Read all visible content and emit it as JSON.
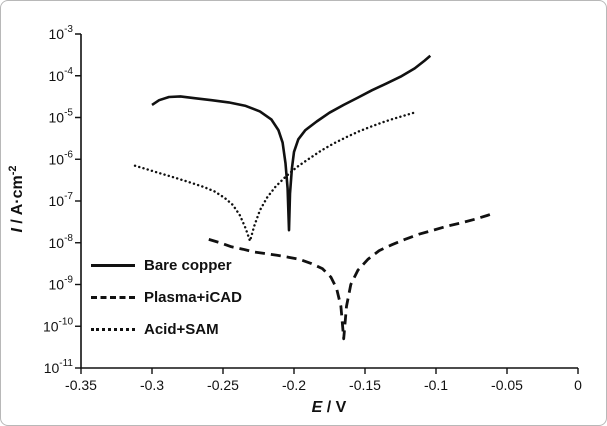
{
  "chart_data": {
    "type": "line",
    "xlabel": "E / V",
    "ylabel": "I / A·cm⁻²",
    "xlabel_symbol": "E",
    "xlabel_rest": " / V",
    "ylabel_symbol": "I",
    "ylabel_rest": " / A·cm",
    "ylabel_sup": "-2",
    "xlim": [
      -0.35,
      0
    ],
    "ylog_lim": [
      -11,
      -3
    ],
    "xtick_values": [
      -0.35,
      -0.3,
      -0.25,
      -0.2,
      -0.15,
      -0.1,
      -0.05,
      0
    ],
    "xtick_labels": [
      "-0.35",
      "-0.3",
      "-0.25",
      "-0.2",
      "-0.15",
      "-0.1",
      "-0.05",
      "0"
    ],
    "ytick_exponents": [
      -3,
      -4,
      -5,
      -6,
      -7,
      -8,
      -9,
      -10,
      -11
    ],
    "legend_position": "lower-left-inside",
    "grid": false,
    "line_color": "#111111",
    "series": [
      {
        "name": "Bare copper",
        "style": "solid",
        "points": [
          [
            -0.3,
            2e-05
          ],
          [
            -0.295,
            2.6e-05
          ],
          [
            -0.288,
            3.1e-05
          ],
          [
            -0.28,
            3.2e-05
          ],
          [
            -0.27,
            2.9e-05
          ],
          [
            -0.258,
            2.6e-05
          ],
          [
            -0.246,
            2.3e-05
          ],
          [
            -0.234,
            1.9e-05
          ],
          [
            -0.224,
            1.4e-05
          ],
          [
            -0.216,
            9e-06
          ],
          [
            -0.211,
            5e-06
          ],
          [
            -0.208,
            2.5e-06
          ],
          [
            -0.206,
            8e-07
          ],
          [
            -0.2045,
            2e-07
          ],
          [
            -0.2035,
            2e-08
          ],
          [
            -0.2028,
            1.5e-07
          ],
          [
            -0.2015,
            6e-07
          ],
          [
            -0.2,
            1.5e-06
          ],
          [
            -0.197,
            3e-06
          ],
          [
            -0.192,
            5e-06
          ],
          [
            -0.184,
            8e-06
          ],
          [
            -0.175,
            1.3e-05
          ],
          [
            -0.165,
            2e-05
          ],
          [
            -0.155,
            3e-05
          ],
          [
            -0.145,
            4.5e-05
          ],
          [
            -0.135,
            6.5e-05
          ],
          [
            -0.125,
            9.5e-05
          ],
          [
            -0.115,
            0.00015
          ],
          [
            -0.108,
            0.00023
          ],
          [
            -0.104,
            0.0003
          ]
        ]
      },
      {
        "name": "Plasma+iCAD",
        "style": "dashed",
        "points": [
          [
            -0.26,
            1.2e-08
          ],
          [
            -0.252,
            1e-08
          ],
          [
            -0.244,
            8e-09
          ],
          [
            -0.236,
            7e-09
          ],
          [
            -0.228,
            6e-09
          ],
          [
            -0.22,
            5.5e-09
          ],
          [
            -0.212,
            5e-09
          ],
          [
            -0.204,
            4.5e-09
          ],
          [
            -0.196,
            4e-09
          ],
          [
            -0.188,
            3.2e-09
          ],
          [
            -0.18,
            2.4e-09
          ],
          [
            -0.174,
            1.5e-09
          ],
          [
            -0.17,
            8e-10
          ],
          [
            -0.167,
            3e-10
          ],
          [
            -0.165,
            5e-11
          ],
          [
            -0.163,
            3e-10
          ],
          [
            -0.16,
            1e-09
          ],
          [
            -0.155,
            2.2e-09
          ],
          [
            -0.148,
            4e-09
          ],
          [
            -0.14,
            6.5e-09
          ],
          [
            -0.131,
            9e-09
          ],
          [
            -0.122,
            1.2e-08
          ],
          [
            -0.112,
            1.6e-08
          ],
          [
            -0.102,
            2e-08
          ],
          [
            -0.092,
            2.5e-08
          ],
          [
            -0.082,
            3e-08
          ],
          [
            -0.072,
            3.7e-08
          ],
          [
            -0.064,
            4.5e-08
          ],
          [
            -0.06,
            5e-08
          ]
        ]
      },
      {
        "name": "Acid+SAM",
        "style": "dotted",
        "points": [
          [
            -0.312,
            7e-07
          ],
          [
            -0.304,
            5.8e-07
          ],
          [
            -0.296,
            4.8e-07
          ],
          [
            -0.288,
            4e-07
          ],
          [
            -0.28,
            3.3e-07
          ],
          [
            -0.272,
            2.7e-07
          ],
          [
            -0.264,
            2.2e-07
          ],
          [
            -0.256,
            1.7e-07
          ],
          [
            -0.249,
            1.2e-07
          ],
          [
            -0.243,
            8e-08
          ],
          [
            -0.238,
            4.5e-08
          ],
          [
            -0.234,
            2.2e-08
          ],
          [
            -0.231,
            1.1e-08
          ],
          [
            -0.228,
            2.5e-08
          ],
          [
            -0.224,
            6e-08
          ],
          [
            -0.219,
            1.2e-07
          ],
          [
            -0.213,
            2.2e-07
          ],
          [
            -0.206,
            3.8e-07
          ],
          [
            -0.198,
            6.5e-07
          ],
          [
            -0.19,
            1e-06
          ],
          [
            -0.181,
            1.6e-06
          ],
          [
            -0.172,
            2.4e-06
          ],
          [
            -0.163,
            3.4e-06
          ],
          [
            -0.154,
            4.7e-06
          ],
          [
            -0.145,
            6.2e-06
          ],
          [
            -0.136,
            8e-06
          ],
          [
            -0.127,
            1e-05
          ],
          [
            -0.119,
            1.2e-05
          ],
          [
            -0.114,
            1.35e-05
          ]
        ]
      }
    ]
  }
}
